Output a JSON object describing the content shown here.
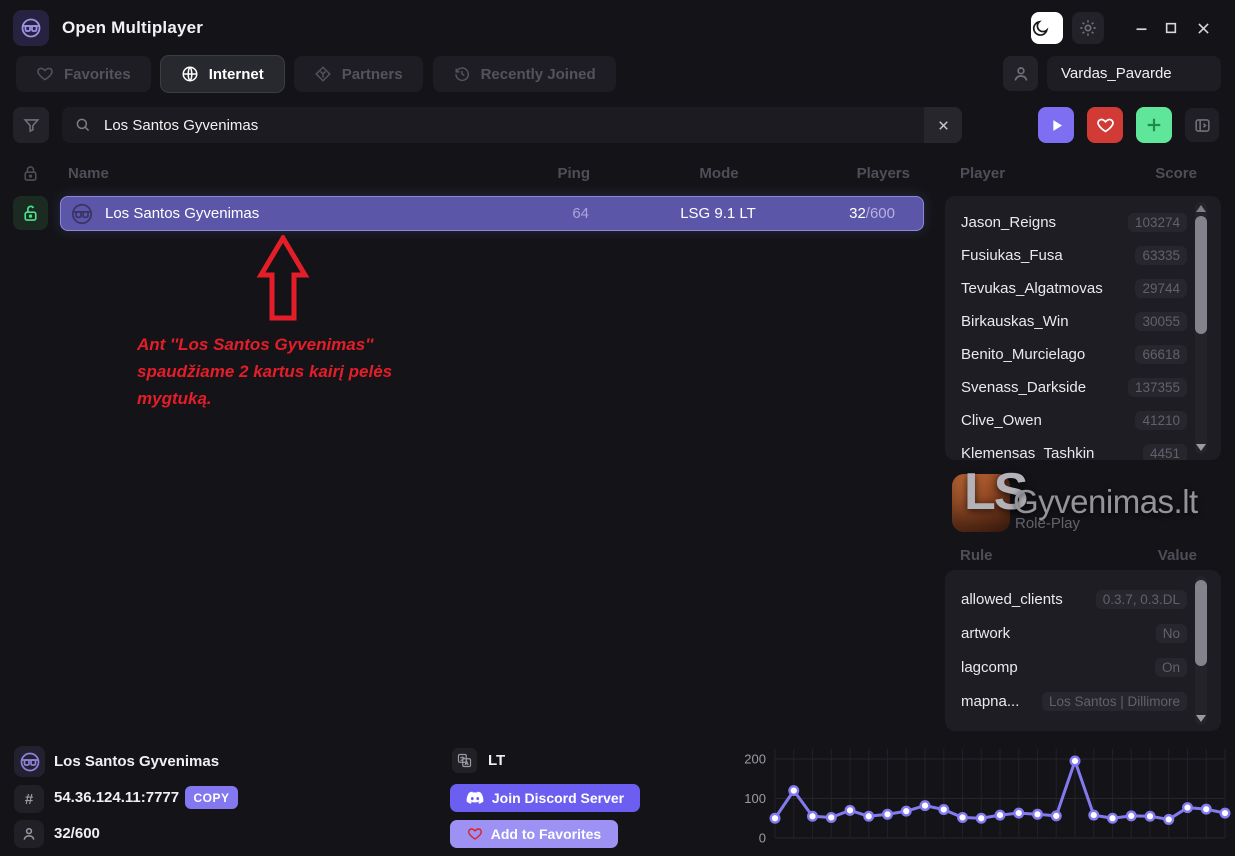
{
  "titlebar": {
    "title": "Open Multiplayer"
  },
  "tabs": [
    {
      "id": "favorites",
      "label": "Favorites",
      "icon": "heart",
      "active": false
    },
    {
      "id": "internet",
      "label": "Internet",
      "icon": "globe",
      "active": true
    },
    {
      "id": "partners",
      "label": "Partners",
      "icon": "partners",
      "active": false
    },
    {
      "id": "recently-joined",
      "label": "Recently Joined",
      "icon": "history",
      "active": false
    }
  ],
  "account": {
    "username": "Vardas_Pavarde"
  },
  "search": {
    "value": "Los Santos Gyvenimas"
  },
  "server_table": {
    "columns": {
      "name": "Name",
      "ping": "Ping",
      "mode": "Mode",
      "players": "Players"
    },
    "row": {
      "name": "Los Santos Gyvenimas",
      "ping": "64",
      "mode": "LSG 9.1 LT",
      "players_current": "32",
      "players_max": "/600"
    }
  },
  "annotation": {
    "lines": [
      "Ant ''Los Santos Gyvenimas''",
      "spaudžiame 2 kartus kairį pelės",
      "mygtuką."
    ],
    "color": "#e41e29"
  },
  "player_panel": {
    "header_player": "Player",
    "header_score": "Score",
    "players": [
      {
        "name": "Jason_Reigns",
        "score": "103274"
      },
      {
        "name": "Fusiukas_Fusa",
        "score": "63335"
      },
      {
        "name": "Tevukas_Algatmovas",
        "score": "29744"
      },
      {
        "name": "Birkauskas_Win",
        "score": "30055"
      },
      {
        "name": "Benito_Murcielago",
        "score": "66618"
      },
      {
        "name": "Svenass_Darkside",
        "score": "137355"
      },
      {
        "name": "Clive_Owen",
        "score": "41210"
      },
      {
        "name": "Klemensas_Tashkin",
        "score": "4451"
      }
    ]
  },
  "server_logo": {
    "big": "LS",
    "rest": "Gyvenimas.lt",
    "subtitle": "Role-Play"
  },
  "rules_panel": {
    "header_rule": "Rule",
    "header_value": "Value",
    "rules": [
      {
        "rule": "allowed_clients",
        "value": "0.3.7, 0.3.DL"
      },
      {
        "rule": "artwork",
        "value": "No"
      },
      {
        "rule": "lagcomp",
        "value": "On"
      },
      {
        "rule": "mapna...",
        "value": "Los Santos | Dillimore"
      }
    ]
  },
  "server_details": {
    "name": "Los Santos Gyvenimas",
    "address_icon": "#",
    "address": "54.36.124.11:7777",
    "copy_label": "COPY",
    "players": "32/600",
    "language": "LT",
    "discord_label": "Join Discord Server",
    "favorites_label": "Add to Favorites"
  },
  "colors": {
    "accent_purple": "#7e6ef2",
    "favorite_red": "#d23b35",
    "add_green": "#5fe69a",
    "selected_row": "#5c56a8",
    "annotation_red": "#e41e29",
    "chart_line": "#837af0"
  },
  "chart_data": {
    "type": "line",
    "title": "",
    "xlabel": "",
    "ylabel": "",
    "x": [
      1,
      2,
      3,
      4,
      5,
      6,
      7,
      8,
      9,
      10,
      11,
      12,
      13,
      14,
      15,
      16,
      17,
      18,
      19,
      20,
      21,
      22,
      23,
      24,
      25
    ],
    "values": [
      50,
      120,
      55,
      52,
      70,
      55,
      60,
      68,
      82,
      72,
      52,
      50,
      58,
      63,
      60,
      56,
      195,
      58,
      50,
      56,
      55,
      47,
      77,
      73,
      63
    ],
    "yticks": [
      0,
      100,
      200
    ],
    "ylim": [
      0,
      220
    ],
    "grid": true,
    "legend_position": "none",
    "line_color": "#837af0",
    "marker": "circle-white"
  }
}
